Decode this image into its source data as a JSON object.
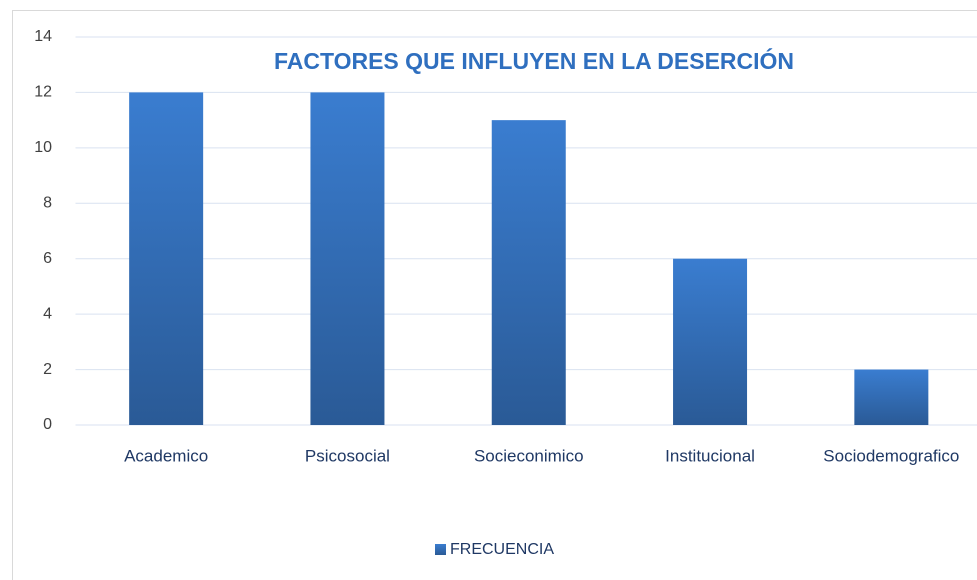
{
  "chart_data": {
    "type": "bar",
    "title": "FACTORES QUE INFLUYEN EN LA DESERCIÓN",
    "categories": [
      "Academico",
      "Psicosocial",
      "Socieconimico",
      "Institucional",
      "Sociodemografico"
    ],
    "series": [
      {
        "name": "FRECUENCIA",
        "color": "#3a7dd0",
        "values": [
          12,
          12,
          11,
          6,
          2
        ]
      }
    ],
    "ylim": [
      0,
      14
    ],
    "yticks": [
      0,
      2,
      4,
      6,
      8,
      10,
      12,
      14
    ],
    "grid": true,
    "legend": "bottom"
  }
}
